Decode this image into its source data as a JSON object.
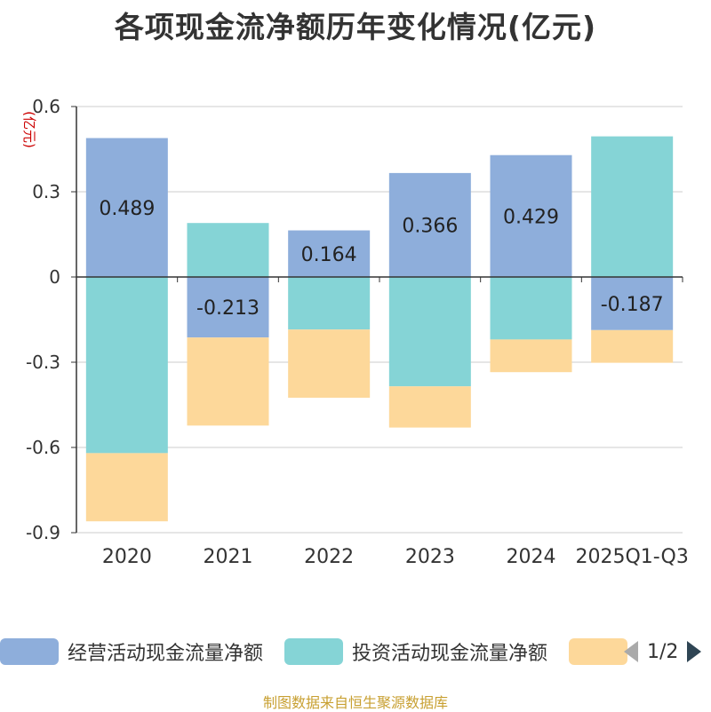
{
  "title": "各项现金流净额历年变化情况(亿元)",
  "source": "制图数据来自恒生聚源数据库",
  "legend": {
    "items": [
      {
        "label": "经营活动现金流量净额",
        "color": "#8eaedb"
      },
      {
        "label": "投资活动现金流量净额",
        "color": "#85d4d6"
      },
      {
        "label": "",
        "color": "#fdd89a"
      }
    ],
    "page": "1/2",
    "prev_icon": "triangle-left-icon",
    "next_icon": "triangle-right-icon"
  },
  "chart_data": {
    "type": "bar",
    "stacked": true,
    "title": "各项现金流净额历年变化情况(亿元)",
    "ylabel": "(亿元)",
    "ylim": [
      -0.9,
      0.6
    ],
    "yticks": [
      0.6,
      0.3,
      0,
      -0.3,
      -0.6,
      -0.9
    ],
    "ytick_labels": [
      "0.6",
      "0.3",
      "0",
      "-0.3",
      "-0.6",
      "-0.9"
    ],
    "categories": [
      "2020",
      "2021",
      "2022",
      "2023",
      "2024",
      "2025Q1-Q3"
    ],
    "series": [
      {
        "name": "经营活动现金流量净额",
        "color": "#8eaedb",
        "values": [
          0.489,
          -0.213,
          0.164,
          0.366,
          0.429,
          -0.187
        ],
        "labels": [
          "0.489",
          "-0.213",
          "0.164",
          "0.366",
          "0.429",
          "-0.187"
        ]
      },
      {
        "name": "投资活动现金流量净额",
        "color": "#85d4d6",
        "values": [
          -0.62,
          0.19,
          -0.185,
          -0.385,
          -0.22,
          0.495
        ]
      },
      {
        "name": "",
        "color": "#fdd89a",
        "values": [
          -0.24,
          -0.31,
          -0.24,
          -0.145,
          -0.115,
          -0.115
        ]
      }
    ]
  }
}
